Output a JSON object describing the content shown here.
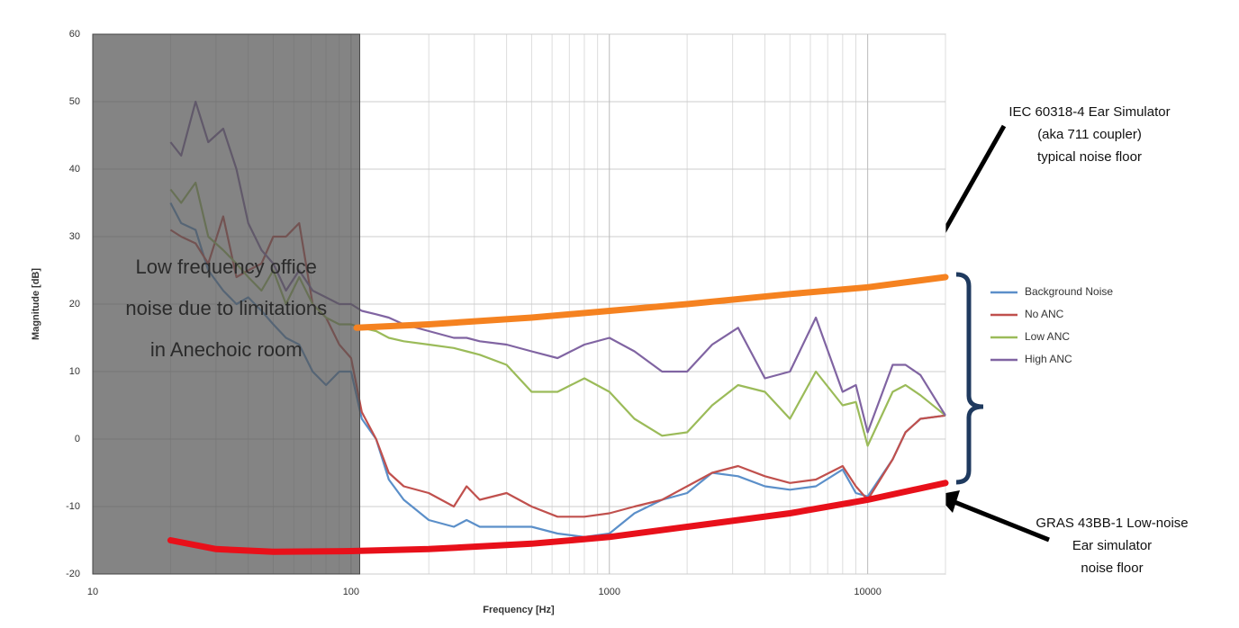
{
  "chart_data": {
    "type": "line",
    "x_label": "Frequency [Hz]",
    "y_label": "Magnitude [dB]",
    "log_x": true,
    "grid": true,
    "minor_grid": true,
    "xlim": [
      10,
      20000
    ],
    "ylim": [
      -20,
      60
    ],
    "xticks": [
      10,
      100,
      1000,
      10000
    ],
    "yticks": [
      -20,
      -10,
      0,
      10,
      20,
      30,
      40,
      50,
      60
    ],
    "legend_position": "right",
    "x": [
      20,
      22,
      25,
      28,
      32,
      36,
      40,
      45,
      50,
      56,
      63,
      71,
      80,
      90,
      100,
      110,
      125,
      140,
      160,
      200,
      250,
      280,
      315,
      400,
      500,
      630,
      800,
      1000,
      1250,
      1600,
      2000,
      2500,
      3150,
      4000,
      5000,
      6300,
      8000,
      9000,
      10000,
      12500,
      14000,
      16000,
      20000
    ],
    "series": [
      {
        "name": "Background Noise",
        "color": "#5b8fc9",
        "values": [
          35,
          32,
          31,
          25,
          22,
          20,
          21,
          19,
          17,
          15,
          14,
          10,
          8,
          10,
          10,
          3,
          0,
          -6,
          -9,
          -12,
          -13,
          -12,
          -13,
          -13,
          -13,
          -14,
          -14.5,
          -14,
          -11,
          -9,
          -8,
          -5,
          -5.5,
          -7,
          -7.5,
          -7,
          -4.5,
          -8,
          -8.5,
          -3,
          1,
          3,
          3.5
        ]
      },
      {
        "name": "No ANC",
        "color": "#c0504d",
        "values": [
          31,
          30,
          29,
          26,
          33,
          24,
          25,
          26,
          30,
          30,
          32,
          20,
          18,
          14,
          12,
          4,
          0,
          -5,
          -7,
          -8,
          -10,
          -7,
          -9,
          -8,
          -10,
          -11.5,
          -11.5,
          -11,
          -10,
          -9,
          -7,
          -5,
          -4,
          -5.5,
          -6.5,
          -6,
          -4,
          -7,
          -9,
          -3,
          1,
          3,
          3.5
        ]
      },
      {
        "name": "Low ANC",
        "color": "#9bbb59",
        "values": [
          37,
          35,
          38,
          30,
          28,
          26,
          24,
          22,
          25,
          20,
          24,
          20,
          18,
          17,
          17,
          16.5,
          16,
          15,
          14.5,
          14,
          13.5,
          13,
          12.5,
          11,
          7,
          7,
          9,
          7,
          3,
          0.5,
          1,
          5,
          8,
          7,
          3,
          10,
          5,
          5.5,
          -1,
          7,
          8,
          6.5,
          3.5
        ]
      },
      {
        "name": "High ANC",
        "color": "#8064a2",
        "values": [
          44,
          42,
          50,
          44,
          46,
          40,
          32,
          28,
          26,
          22,
          25,
          22,
          21,
          20,
          20,
          19,
          18.5,
          18,
          17,
          16,
          15,
          15,
          14.5,
          14,
          13,
          12,
          14,
          15,
          13,
          10,
          10,
          14,
          16.5,
          9,
          10,
          18,
          7,
          8,
          1,
          11,
          11,
          9.5,
          3.5
        ]
      }
    ],
    "shaded_region": {
      "xlim": [
        10,
        108
      ],
      "color": "#555555",
      "label": [
        "Low frequency office",
        "noise due to limitations",
        "in Anechoic room"
      ]
    },
    "noise_floors": [
      {
        "color": "#f58220",
        "label": [
          "IEC 60318-4 Ear Simulator",
          "(aka 711 coupler)",
          "typical noise floor"
        ],
        "x": [
          105,
          200,
          500,
          1000,
          2000,
          5000,
          10000,
          20000
        ],
        "values": [
          16.5,
          17,
          18,
          19,
          20,
          21.5,
          22.5,
          24
        ]
      },
      {
        "color": "#e8101a",
        "label": [
          "GRAS 43BB-1 Low-noise",
          "Ear simulator",
          "noise floor"
        ],
        "x": [
          20,
          30,
          50,
          100,
          200,
          500,
          1000,
          2000,
          5000,
          10000,
          20000
        ],
        "values": [
          -15,
          -16.3,
          -16.7,
          -16.6,
          -16.3,
          -15.5,
          -14.5,
          -13,
          -11,
          -9,
          -6.5
        ]
      }
    ]
  }
}
